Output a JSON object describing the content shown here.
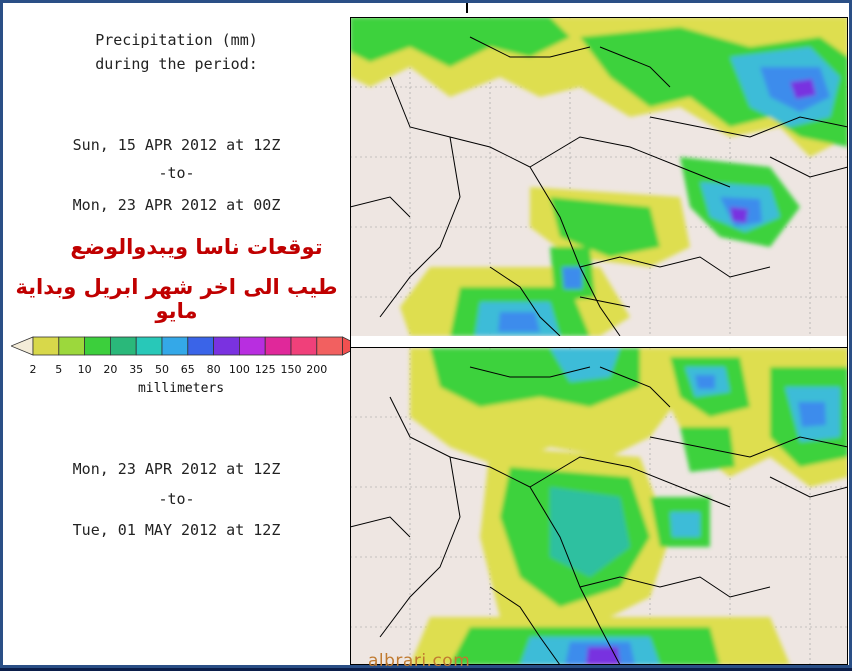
{
  "header": {
    "title_line1": "Precipitation (mm)",
    "title_line2": "during the period:"
  },
  "period1": {
    "start": "Sun, 15 APR 2012 at 12Z",
    "to": "-to-",
    "end": "Mon, 23 APR 2012 at 00Z"
  },
  "period2": {
    "start": "Mon, 23 APR 2012 at 12Z",
    "to": "-to-",
    "end": "Tue, 01 MAY 2012 at 12Z"
  },
  "arabic": {
    "line1": "توقعات ناسا ويبدوالوضع",
    "line2": "طيب الى اخر شهر ابريل وبداية مايو"
  },
  "legend": {
    "labels": [
      "2",
      "5",
      "10",
      "20",
      "35",
      "50",
      "65",
      "80",
      "100",
      "125",
      "150",
      "200"
    ],
    "colors": [
      "#d8d84a",
      "#9cd83c",
      "#3ccf3c",
      "#2ab87a",
      "#28c8b8",
      "#34a8e8",
      "#3a64e8",
      "#7a32e0",
      "#b82ee0",
      "#e0289a",
      "#f0407a",
      "#f26060"
    ],
    "unit": "millimeters"
  },
  "watermark": "albrari.com",
  "map_colors": {
    "land": "#eee6e2",
    "border": "#000000",
    "grid": "#9a9a9a",
    "yellow": "#dede50",
    "lightgreen": "#a0dc50",
    "green": "#3cd23c",
    "teal": "#2ec0a0",
    "cyan": "#3cbcd8",
    "blue": "#3c8cec",
    "purple": "#7830e0"
  }
}
